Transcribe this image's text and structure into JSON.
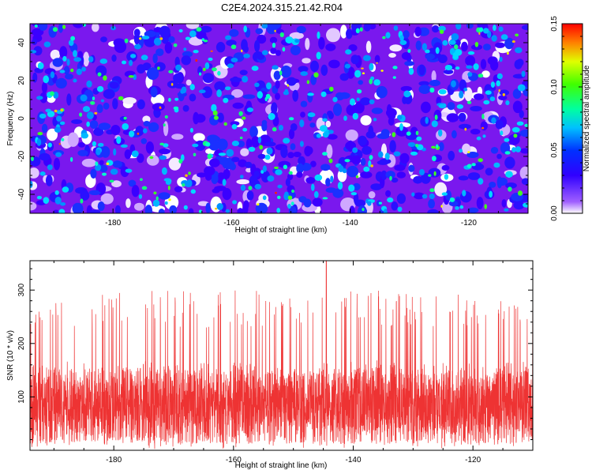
{
  "title": "C2E4.2024.315.21.42.R04",
  "chart_data": [
    {
      "type": "heatmap",
      "xlabel": "Height of straight line (km)",
      "ylabel": "Frequency (Hz)",
      "xlim": [
        -194,
        -110
      ],
      "ylim": [
        -50,
        50
      ],
      "xticks": [
        -180,
        -160,
        -140,
        -120
      ],
      "yticks": [
        -40,
        -20,
        0,
        20,
        40
      ],
      "colorbar": {
        "label": "Normalized spectral amplitude",
        "range": [
          0.0,
          0.15
        ],
        "ticks": [
          "0.00",
          "0.05",
          "0.10",
          "0.15"
        ],
        "colormap": [
          "#ffffff",
          "#8000ff",
          "#0000ff",
          "#00ffff",
          "#00ff00",
          "#ffff00",
          "#ff0000"
        ]
      }
    },
    {
      "type": "line",
      "xlabel": "Height of straight line (km)",
      "ylabel": "SNR (10 * v/v)",
      "xlim": [
        -194,
        -110
      ],
      "ylim": [
        0,
        355
      ],
      "xticks": [
        -180,
        -160,
        -140,
        -120
      ],
      "yticks": [
        100,
        200,
        300
      ],
      "color": "#ee3333",
      "summary": {
        "mean": 95,
        "typical_min": 20,
        "typical_max": 230,
        "max": 355,
        "max_at_x": -144.5
      }
    }
  ]
}
